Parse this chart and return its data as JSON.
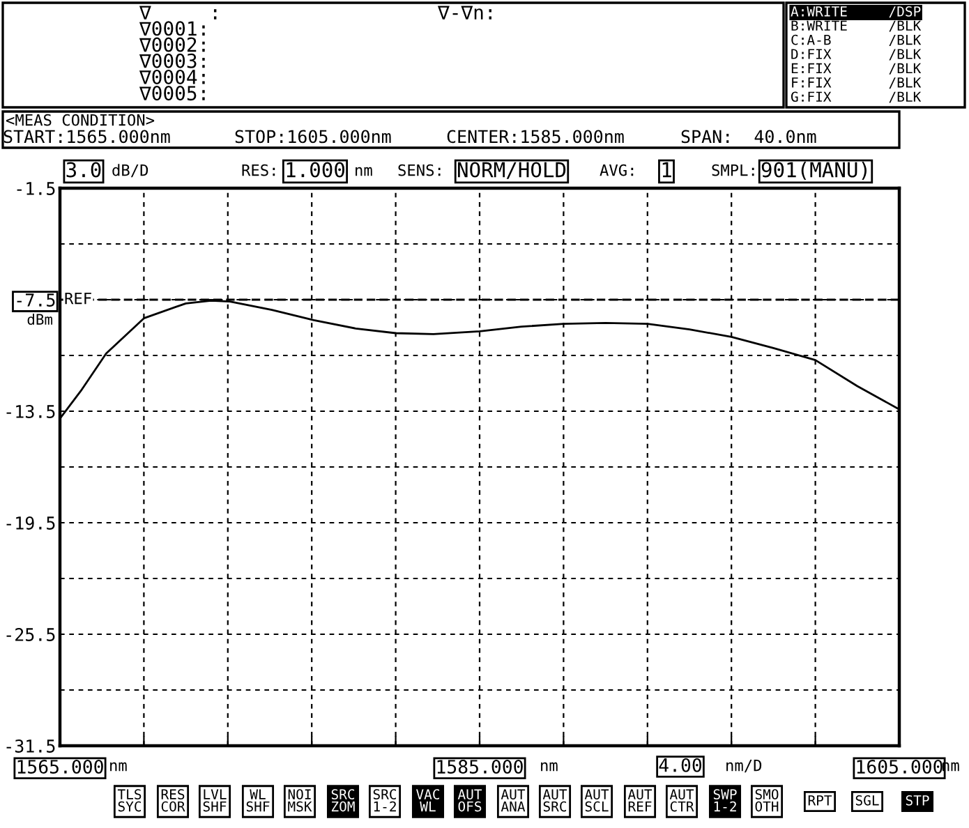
{
  "chart_data": {
    "type": "line",
    "ylabel": "dBm",
    "xlim": [
      1565,
      1605
    ],
    "ylim": [
      -31.5,
      -1.5
    ],
    "xticks": [
      {
        "value": 1565,
        "label": "1565.000"
      },
      {
        "value": 1569,
        "label": null
      },
      {
        "value": 1573,
        "label": null
      },
      {
        "value": 1577,
        "label": null
      },
      {
        "value": 1581,
        "label": null
      },
      {
        "value": 1585,
        "label": "1585.000"
      },
      {
        "value": 1589,
        "label": null
      },
      {
        "value": 1593,
        "label": null
      },
      {
        "value": 1597,
        "label": null
      },
      {
        "value": 1601,
        "label": null
      },
      {
        "value": 1605,
        "label": "1605.000"
      }
    ],
    "yticks": [
      -31.5,
      {
        "value": -28.5,
        "label": null
      },
      -25.5,
      {
        "value": -22.5,
        "label": null
      },
      -19.5,
      {
        "value": -16.5,
        "label": null
      },
      -13.5,
      {
        "value": -10.5,
        "label": null
      },
      -7.5,
      {
        "value": -4.5,
        "label": null
      },
      -1.5
    ],
    "grid": true,
    "legend": false,
    "marker": "none",
    "line_style": "solid",
    "ref_lines": [
      {
        "axis": "y",
        "value": -7.5,
        "label": "REF"
      }
    ],
    "series": [
      {
        "color": "#000000",
        "x": [
          1565,
          1566,
          1567.2,
          1569,
          1571,
          1572.2,
          1573.1,
          1575.1,
          1577.1,
          1579.1,
          1581,
          1582.8,
          1585,
          1587,
          1589,
          1591,
          1593,
          1595,
          1597,
          1599,
          1601,
          1603,
          1605
        ],
        "values": [
          -13.9,
          -12.4,
          -10.4,
          -8.5,
          -7.7,
          -7.55,
          -7.6,
          -8.05,
          -8.6,
          -9.05,
          -9.3,
          -9.35,
          -9.2,
          -8.95,
          -8.8,
          -8.75,
          -8.8,
          -9.1,
          -9.5,
          -10.1,
          -10.75,
          -12.15,
          -13.4
        ]
      }
    ],
    "annotations": [
      "∇     :",
      "∇0001:",
      "∇0002:",
      "∇0003:",
      "∇0004:",
      "∇0005:",
      "∇-∇n:",
      "A:WRITE     /DSP",
      "B:WRITE     /BLK",
      "C:A-B       /BLK",
      "D:FIX       /BLK",
      "E:FIX       /BLK",
      "F:FIX       /BLK",
      "G:FIX       /BLK",
      "<MEAS CONDITION>",
      "START:1565.000nm",
      "STOP:1605.000nm",
      "CENTER:1585.000nm",
      "SPAN:  40.0nm",
      "3.0",
      "dB/D",
      "RES:",
      "1.000",
      "nm",
      "SENS:",
      "NORM/HOLD",
      "AVG:",
      "1",
      "SMPL:",
      "901(MANU)",
      "nm",
      "nm",
      "4.00",
      "nm/D",
      "nm",
      "TLS\nSYC",
      "RES\nCOR",
      "LVL\nSHF",
      "WL\nSHF",
      "NOI\nMSK",
      "SRC\nZOM",
      "SRC\n1-2",
      "VAC\nWL",
      "AUT\nOFS",
      "AUT\nANA",
      "AUT\nSRC",
      "AUT\nSCL",
      "AUT\nREF",
      "AUT\nCTR",
      "SWP\n1-2",
      "SMO\nOTH",
      "RPT",
      "SGL",
      "STP"
    ]
  }
}
